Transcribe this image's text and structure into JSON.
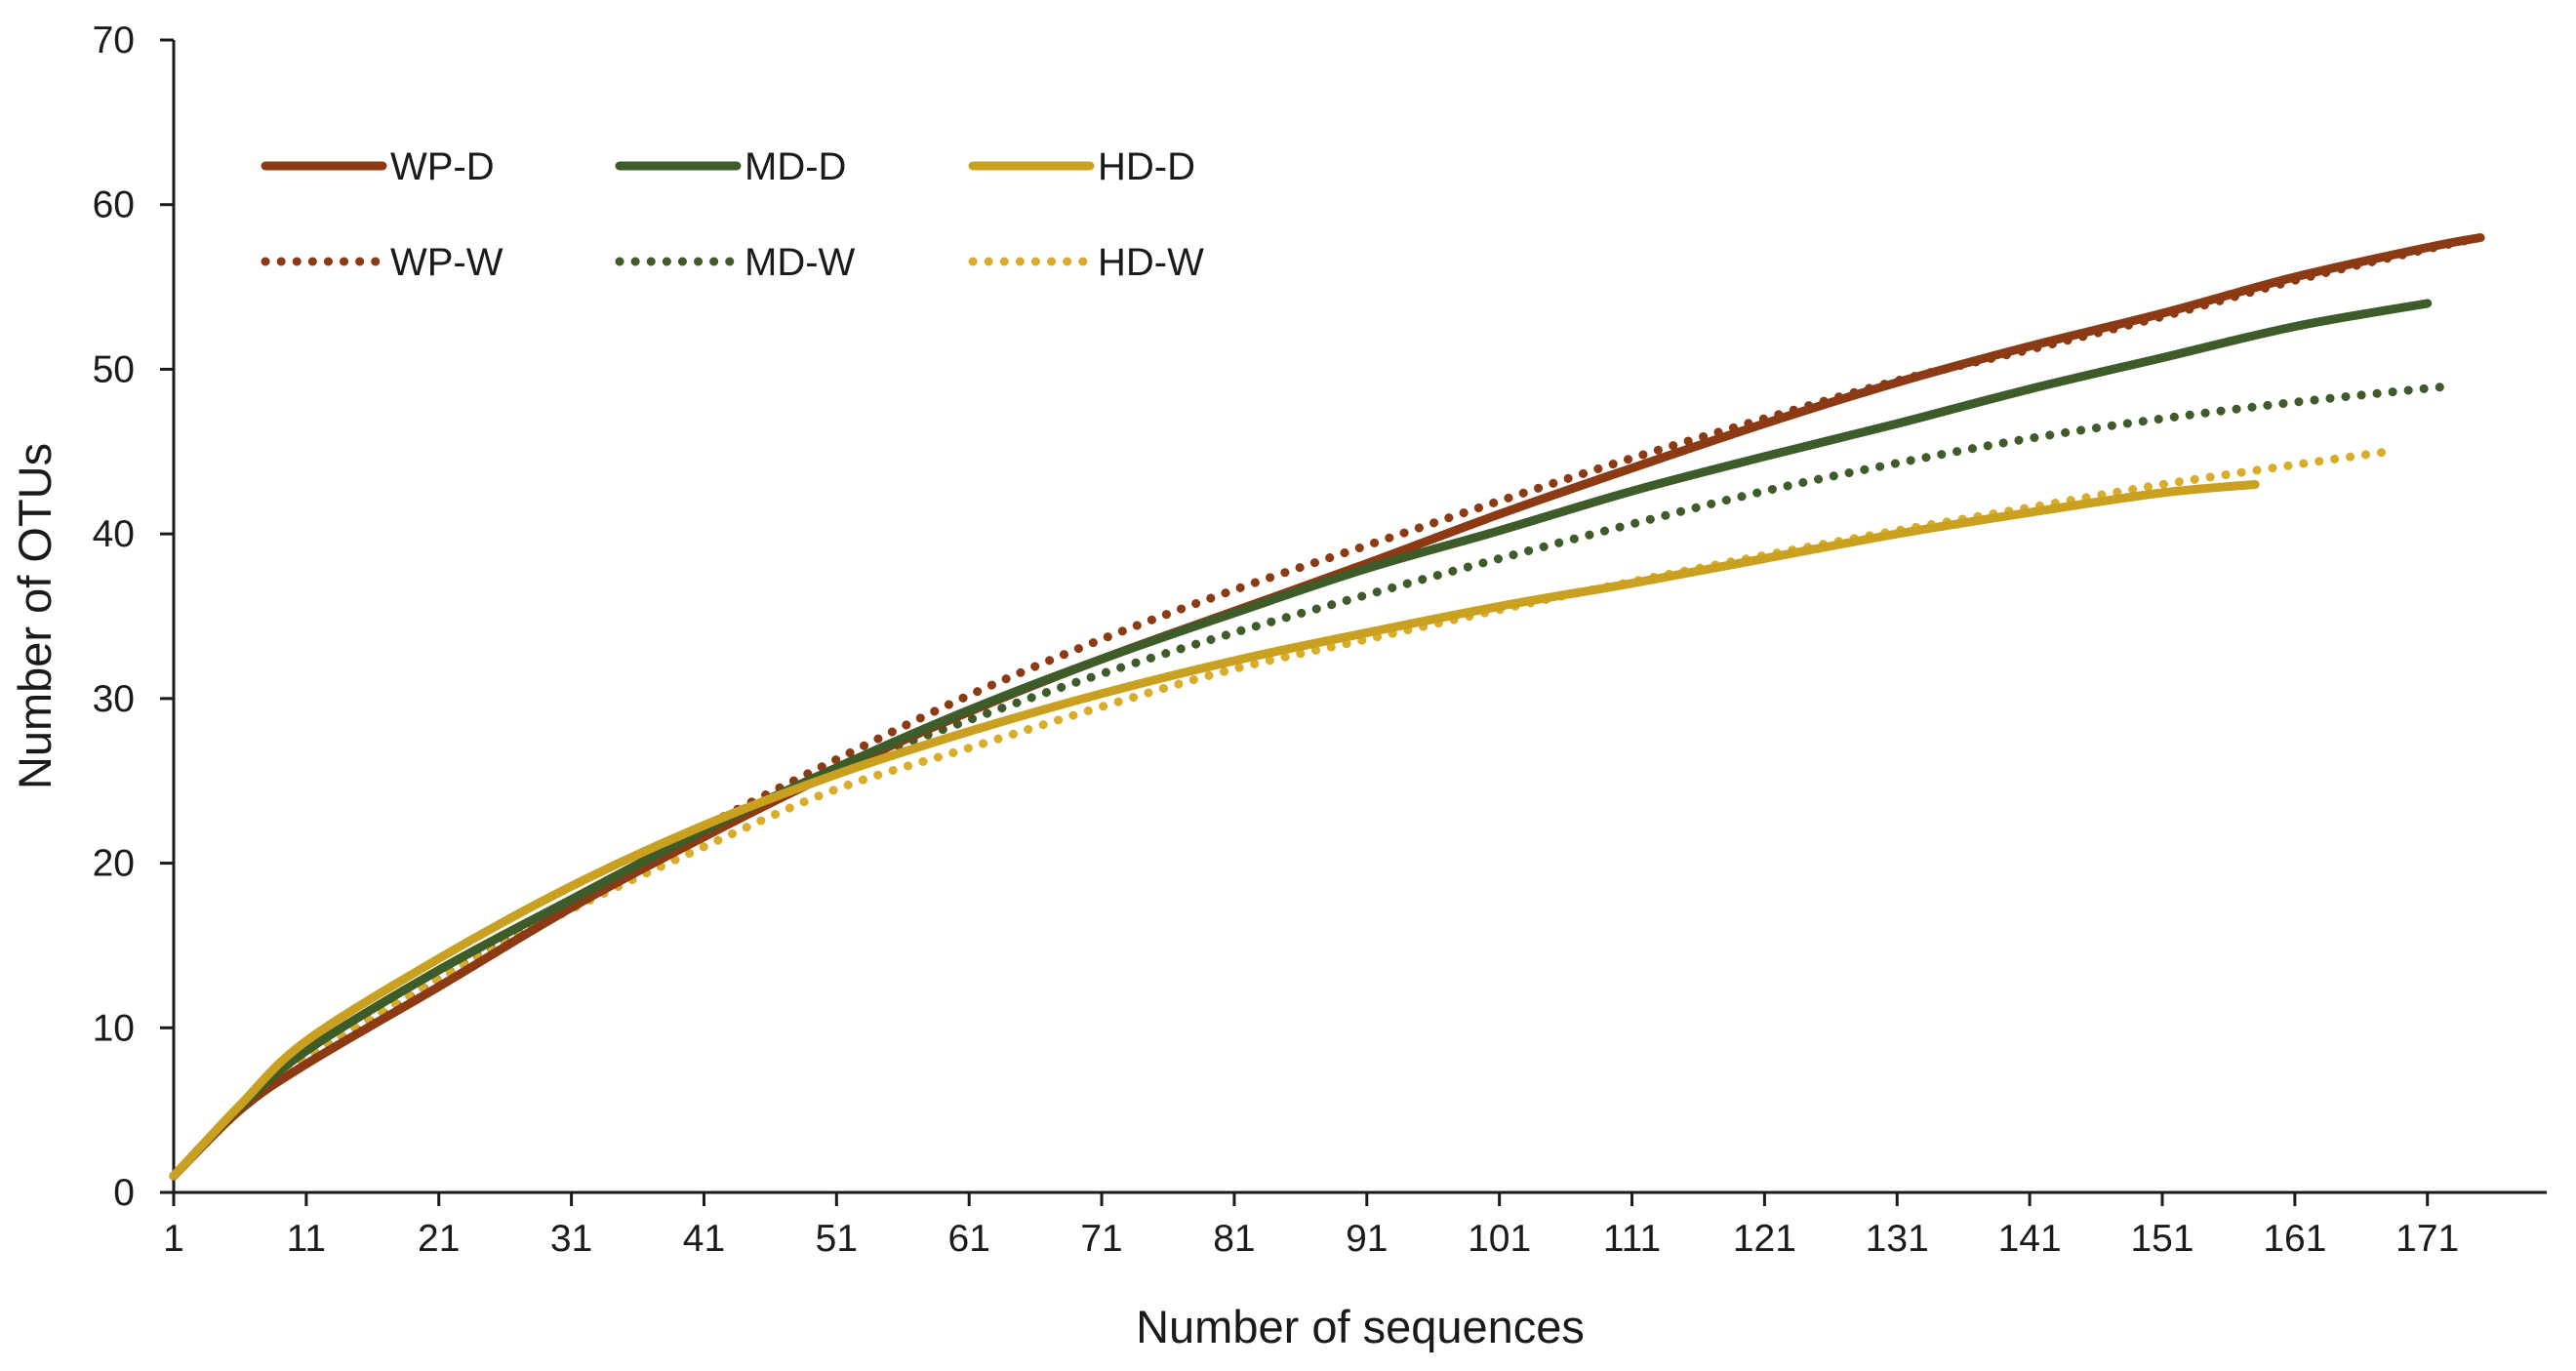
{
  "chart_data": {
    "type": "line",
    "title": "",
    "xlabel": "Number of sequences",
    "ylabel": "Number of OTUs",
    "xlim": [
      1,
      180
    ],
    "ylim": [
      0,
      70
    ],
    "x_ticks": [
      1,
      11,
      21,
      31,
      41,
      51,
      61,
      71,
      81,
      91,
      101,
      111,
      121,
      131,
      141,
      151,
      161,
      171
    ],
    "y_ticks": [
      0,
      10,
      20,
      30,
      40,
      50,
      60,
      70
    ],
    "grid": false,
    "legend_position": "top-left",
    "series": [
      {
        "name": "WP-D",
        "color": "#8B3A14",
        "style": "solid",
        "points": [
          [
            1,
            1
          ],
          [
            6,
            5
          ],
          [
            11,
            7.8
          ],
          [
            21,
            12.5
          ],
          [
            31,
            17.3
          ],
          [
            41,
            21.6
          ],
          [
            51,
            25.6
          ],
          [
            61,
            29.2
          ],
          [
            71,
            32.4
          ],
          [
            81,
            35.3
          ],
          [
            91,
            38.2
          ],
          [
            101,
            41.2
          ],
          [
            111,
            44
          ],
          [
            121,
            46.7
          ],
          [
            131,
            49.2
          ],
          [
            141,
            51.4
          ],
          [
            151,
            53.4
          ],
          [
            161,
            55.6
          ],
          [
            171,
            57.4
          ],
          [
            175,
            58
          ]
        ]
      },
      {
        "name": "MD-D",
        "color": "#3D5C2A",
        "style": "solid",
        "points": [
          [
            1,
            1
          ],
          [
            6,
            5.2
          ],
          [
            11,
            8.6
          ],
          [
            21,
            13.5
          ],
          [
            31,
            17.8
          ],
          [
            41,
            22
          ],
          [
            51,
            25.8
          ],
          [
            61,
            29.3
          ],
          [
            71,
            32.4
          ],
          [
            81,
            35.2
          ],
          [
            91,
            37.9
          ],
          [
            101,
            40.2
          ],
          [
            111,
            42.6
          ],
          [
            121,
            44.7
          ],
          [
            131,
            46.7
          ],
          [
            141,
            48.8
          ],
          [
            151,
            50.7
          ],
          [
            161,
            52.6
          ],
          [
            171,
            54
          ]
        ]
      },
      {
        "name": "HD-D",
        "color": "#C9A020",
        "style": "solid",
        "points": [
          [
            1,
            1
          ],
          [
            6,
            5.3
          ],
          [
            11,
            9.2
          ],
          [
            21,
            14.2
          ],
          [
            31,
            18.6
          ],
          [
            41,
            22.3
          ],
          [
            51,
            25.4
          ],
          [
            61,
            28
          ],
          [
            71,
            30.3
          ],
          [
            81,
            32.3
          ],
          [
            91,
            34
          ],
          [
            101,
            35.6
          ],
          [
            111,
            37
          ],
          [
            121,
            38.5
          ],
          [
            131,
            40
          ],
          [
            141,
            41.3
          ],
          [
            151,
            42.5
          ],
          [
            158,
            43
          ]
        ]
      },
      {
        "name": "WP-W",
        "color": "#8B3A14",
        "style": "dotted",
        "points": [
          [
            1,
            1
          ],
          [
            6,
            5
          ],
          [
            11,
            7.9
          ],
          [
            21,
            13
          ],
          [
            31,
            17.6
          ],
          [
            41,
            22.2
          ],
          [
            51,
            26.3
          ],
          [
            61,
            30.2
          ],
          [
            71,
            33.6
          ],
          [
            81,
            36.6
          ],
          [
            91,
            39.3
          ],
          [
            101,
            42
          ],
          [
            111,
            44.6
          ],
          [
            121,
            47
          ],
          [
            131,
            49.3
          ],
          [
            141,
            51.2
          ],
          [
            151,
            53.2
          ],
          [
            161,
            55.4
          ],
          [
            171,
            57.3
          ],
          [
            175,
            58
          ]
        ]
      },
      {
        "name": "MD-W",
        "color": "#3D5C2A",
        "style": "dotted",
        "points": [
          [
            1,
            1
          ],
          [
            6,
            5.1
          ],
          [
            11,
            8.2
          ],
          [
            21,
            13
          ],
          [
            31,
            17.4
          ],
          [
            41,
            21.7
          ],
          [
            51,
            25.6
          ],
          [
            61,
            28.7
          ],
          [
            71,
            31.5
          ],
          [
            81,
            34
          ],
          [
            91,
            36.3
          ],
          [
            101,
            38.5
          ],
          [
            111,
            40.6
          ],
          [
            121,
            42.6
          ],
          [
            131,
            44.3
          ],
          [
            141,
            45.8
          ],
          [
            151,
            47
          ],
          [
            161,
            48
          ],
          [
            173,
            49
          ]
        ]
      },
      {
        "name": "HD-W",
        "color": "#D9AD2A",
        "style": "dotted",
        "points": [
          [
            1,
            1
          ],
          [
            6,
            5
          ],
          [
            11,
            8.2
          ],
          [
            21,
            13
          ],
          [
            31,
            17.2
          ],
          [
            41,
            21
          ],
          [
            51,
            24.5
          ],
          [
            61,
            27
          ],
          [
            71,
            29.5
          ],
          [
            81,
            31.8
          ],
          [
            91,
            33.6
          ],
          [
            101,
            35.4
          ],
          [
            111,
            37.1
          ],
          [
            121,
            38.7
          ],
          [
            131,
            40.2
          ],
          [
            141,
            41.6
          ],
          [
            151,
            43
          ],
          [
            161,
            44.2
          ],
          [
            168,
            45
          ]
        ]
      }
    ]
  }
}
